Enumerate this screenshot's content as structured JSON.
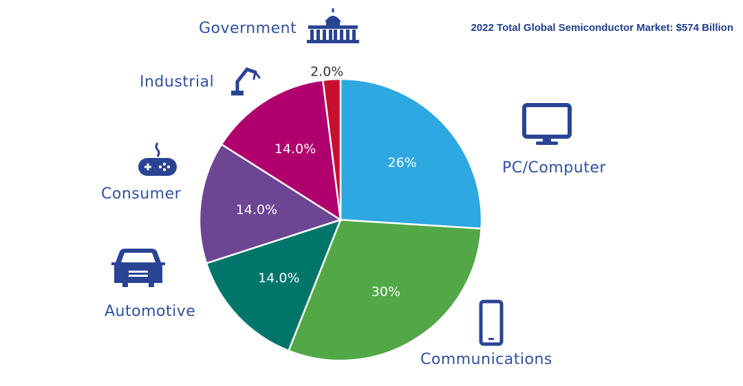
{
  "chart_data": {
    "type": "pie",
    "title": "2022 Total Global Semiconductor Market: $574 Billion",
    "slices": [
      {
        "name": "PC/Computer",
        "value": 26,
        "label": "26%",
        "color": "#2ea8e0",
        "icon": "monitor-icon"
      },
      {
        "name": "Communications",
        "value": 30,
        "label": "30%",
        "color": "#52a846",
        "icon": "smartphone-icon"
      },
      {
        "name": "Automotive",
        "value": 14,
        "label": "14.0%",
        "color": "#00766a",
        "icon": "car-icon"
      },
      {
        "name": "Consumer",
        "value": 14,
        "label": "14.0%",
        "color": "#6c4593",
        "icon": "gamepad-icon"
      },
      {
        "name": "Industrial",
        "value": 14,
        "label": "14.0%",
        "color": "#b0006e",
        "icon": "robot-arm-icon"
      },
      {
        "name": "Government",
        "value": 2,
        "label": "2.0%",
        "color": "#c8102e",
        "icon": "capitol-building-icon"
      }
    ],
    "start_angle": "12 o'clock",
    "direction": "clockwise"
  }
}
